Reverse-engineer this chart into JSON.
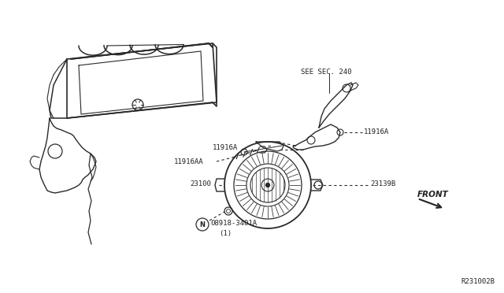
{
  "bg_color": "#ffffff",
  "line_color": "#2a2a2a",
  "text_color": "#222222",
  "diagram_ref": "R231002B",
  "labels": {
    "see_sec": "SEE SEC. 240",
    "11916A_left": "11916A",
    "11916A_right": "11916A",
    "11916AA": "11916AA",
    "23100": "23100",
    "23139B": "23139B",
    "part_num": "08918-3401A",
    "part_qty": "(1)",
    "front": "FRONT"
  },
  "figsize": [
    6.4,
    3.72
  ],
  "dpi": 100
}
